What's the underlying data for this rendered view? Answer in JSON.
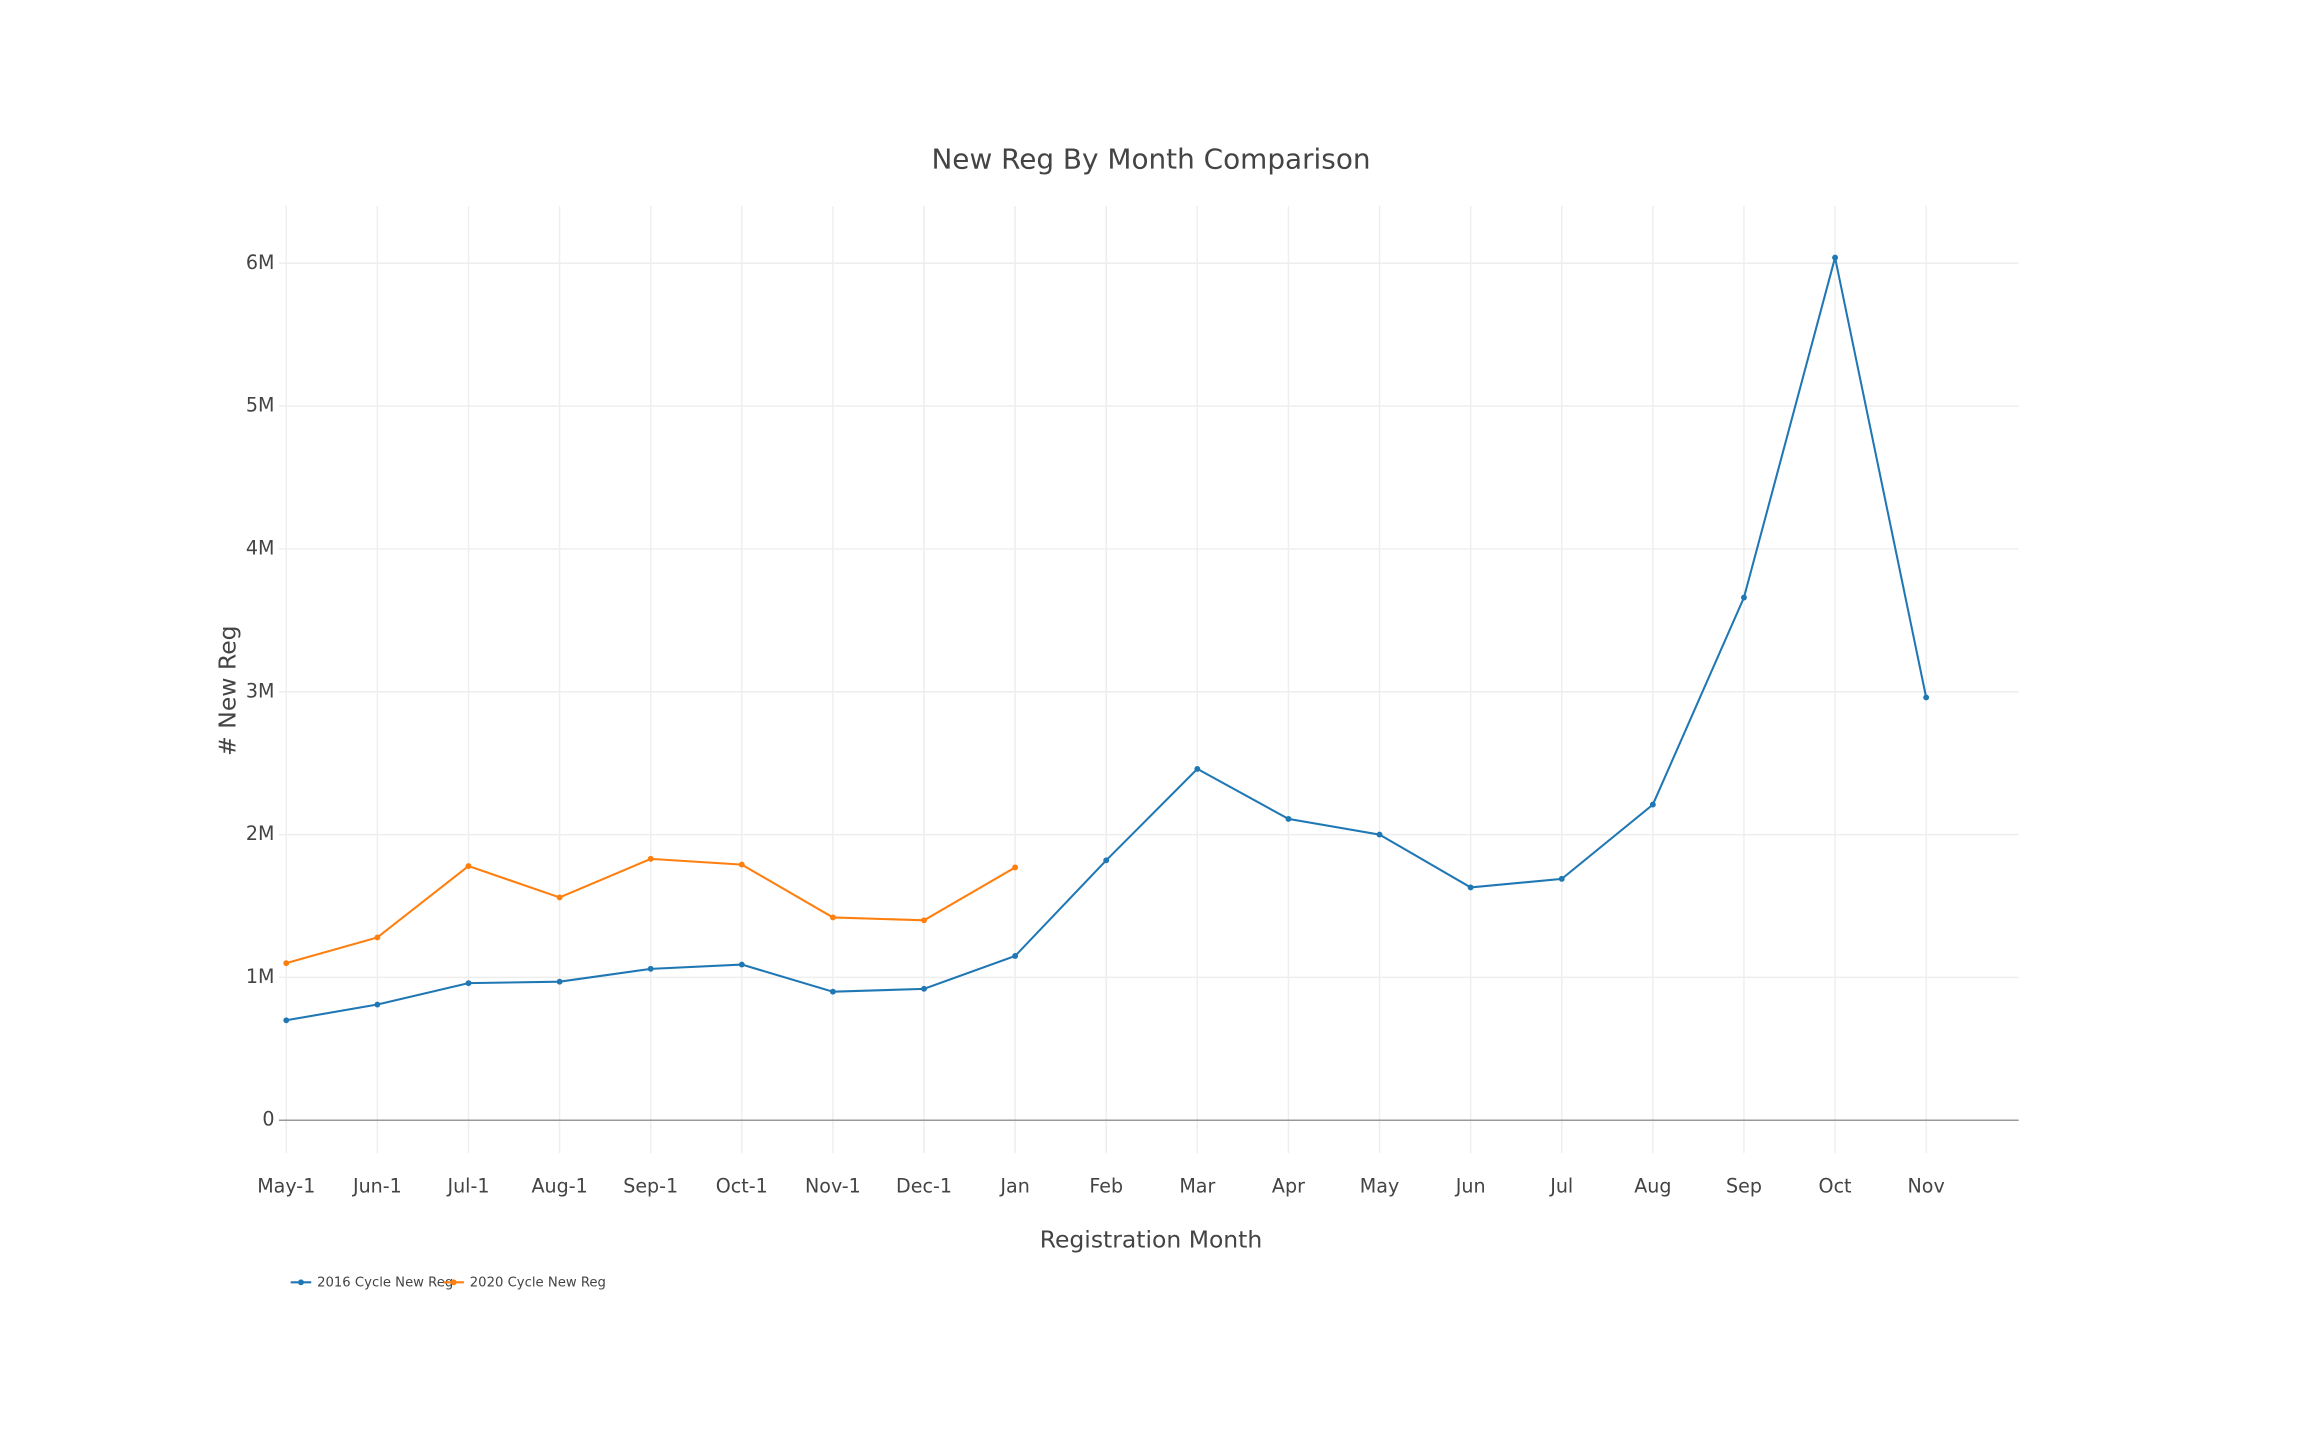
{
  "chart_data": {
    "type": "line",
    "title": "New Reg By Month Comparison",
    "x_label": "Registration Month",
    "y_label": "# New Reg",
    "categories": [
      "May-1",
      "Jun-1",
      "Jul-1",
      "Aug-1",
      "Sep-1",
      "Oct-1",
      "Nov-1",
      "Dec-1",
      "Jan",
      "Feb",
      "Mar",
      "Apr",
      "May",
      "Jun",
      "Jul",
      "Aug",
      "Sep",
      "Oct",
      "Nov"
    ],
    "series": [
      {
        "name": "2016 Cycle New Reg",
        "color": "#1f77b4",
        "values": [
          700000,
          810000,
          960000,
          970000,
          1060000,
          1090000,
          900000,
          920000,
          1150000,
          1820000,
          2460000,
          2110000,
          2000000,
          1630000,
          1690000,
          2210000,
          3660000,
          6040000,
          2960000
        ]
      },
      {
        "name": "2020 Cycle New Reg",
        "color": "#ff7f0e",
        "values": [
          1100000,
          1280000,
          1780000,
          1560000,
          1830000,
          1790000,
          1420000,
          1400000,
          1770000,
          null,
          null,
          null,
          null,
          null,
          null,
          null,
          null,
          null,
          null
        ]
      }
    ],
    "ylim": [
      -230000,
      6400000
    ],
    "yticks": [
      0,
      {
        "value": 1000000,
        "label": "1M"
      },
      {
        "value": 2000000,
        "label": "2M"
      },
      {
        "value": 3000000,
        "label": "3M"
      },
      {
        "value": 4000000,
        "label": "4M"
      },
      {
        "value": 5000000,
        "label": "5M"
      },
      {
        "value": 6000000,
        "label": "6M"
      }
    ],
    "grid": true,
    "legend": "bottom-left"
  }
}
